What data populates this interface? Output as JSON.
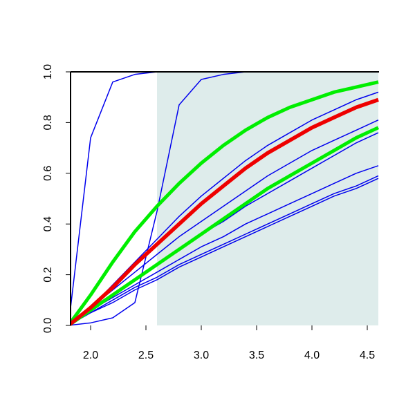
{
  "chart_data": {
    "type": "line",
    "x": [
      1.8,
      2.0,
      2.2,
      2.4,
      2.6,
      2.8,
      3.0,
      3.2,
      3.4,
      3.6,
      3.8,
      4.0,
      4.2,
      4.4,
      4.6
    ],
    "xlim": [
      1.8,
      4.6
    ],
    "ylim": [
      0,
      1
    ],
    "xticks": [
      {
        "value": 2,
        "label": "2.0"
      },
      2.5,
      {
        "value": 3,
        "label": "3.0"
      },
      3.5,
      {
        "value": 4,
        "label": "4.0"
      },
      4.5
    ],
    "yticks": [
      {
        "value": 0,
        "label": "0.0"
      },
      0.2,
      0.4,
      0.6,
      0.8,
      {
        "value": 1,
        "label": "1.0"
      }
    ],
    "shade": {
      "xlim": [
        2.6,
        4.6
      ],
      "color": "#deeceb"
    },
    "series": [
      {
        "color": "#0000ee",
        "width": 1.5,
        "values": [
          0,
          0.74,
          0.96,
          0.99,
          1,
          1,
          1,
          1,
          1,
          1,
          1,
          1,
          1,
          1,
          1
        ]
      },
      {
        "color": "#0000ee",
        "width": 1.5,
        "values": [
          0,
          0.01,
          0.03,
          0.09,
          0.45,
          0.87,
          0.97,
          0.99,
          1,
          1,
          1,
          1,
          1,
          1,
          1
        ]
      },
      {
        "color": "#0000ee",
        "width": 1.5,
        "values": [
          0,
          0.05,
          0.09,
          0.14,
          0.18,
          0.23,
          0.27,
          0.31,
          0.35,
          0.39,
          0.43,
          0.47,
          0.51,
          0.54,
          0.58
        ]
      },
      {
        "color": "#0000ee",
        "width": 1.5,
        "values": [
          0,
          0.05,
          0.1,
          0.15,
          0.19,
          0.24,
          0.28,
          0.32,
          0.36,
          0.4,
          0.44,
          0.48,
          0.52,
          0.55,
          0.59
        ]
      },
      {
        "color": "#0000ee",
        "width": 1.5,
        "values": [
          0,
          0.06,
          0.11,
          0.16,
          0.21,
          0.26,
          0.31,
          0.35,
          0.4,
          0.44,
          0.48,
          0.52,
          0.56,
          0.6,
          0.63
        ]
      },
      {
        "color": "#0000ee",
        "width": 1.5,
        "values": [
          0,
          0.06,
          0.12,
          0.18,
          0.24,
          0.3,
          0.36,
          0.41,
          0.47,
          0.52,
          0.57,
          0.62,
          0.67,
          0.72,
          0.76
        ]
      },
      {
        "color": "#0000ee",
        "width": 1.5,
        "values": [
          0,
          0.07,
          0.14,
          0.21,
          0.28,
          0.35,
          0.41,
          0.47,
          0.53,
          0.59,
          0.64,
          0.69,
          0.73,
          0.77,
          0.81
        ]
      },
      {
        "color": "#0000ee",
        "width": 1.5,
        "values": [
          0,
          0.07,
          0.16,
          0.25,
          0.34,
          0.43,
          0.51,
          0.58,
          0.65,
          0.71,
          0.76,
          0.81,
          0.85,
          0.89,
          0.92
        ]
      },
      {
        "color": "#00ee00",
        "width": 5,
        "values": [
          0,
          0.06,
          0.12,
          0.18,
          0.24,
          0.3,
          0.36,
          0.42,
          0.48,
          0.54,
          0.59,
          0.64,
          0.69,
          0.74,
          0.78
        ]
      },
      {
        "color": "#00ee00",
        "width": 5,
        "values": [
          0,
          0.12,
          0.25,
          0.37,
          0.47,
          0.56,
          0.64,
          0.71,
          0.77,
          0.82,
          0.86,
          0.89,
          0.92,
          0.94,
          0.96
        ]
      },
      {
        "color": "#ee0000",
        "width": 5.5,
        "values": [
          0,
          0.07,
          0.15,
          0.24,
          0.32,
          0.4,
          0.48,
          0.55,
          0.62,
          0.68,
          0.73,
          0.78,
          0.82,
          0.86,
          0.89
        ]
      }
    ]
  }
}
